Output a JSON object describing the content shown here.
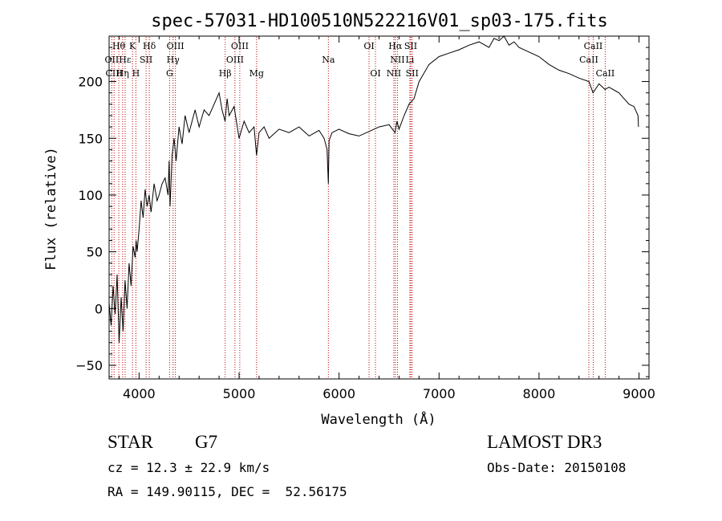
{
  "chart_data": {
    "type": "line",
    "title": "spec-57031-HD100510N522216V01_sp03-175.fits",
    "xlabel": "Wavelength (Å)",
    "ylabel": "Flux (relative)",
    "xlim": [
      3700,
      9100
    ],
    "ylim": [
      -62,
      240
    ],
    "x_ticks": [
      4000,
      5000,
      6000,
      7000,
      8000,
      9000
    ],
    "y_ticks": [
      -50,
      0,
      50,
      100,
      150,
      200
    ],
    "grid": false,
    "series": [
      {
        "color": "#000000",
        "x": [
          3700,
          3720,
          3740,
          3760,
          3780,
          3800,
          3820,
          3840,
          3860,
          3880,
          3900,
          3920,
          3940,
          3960,
          3970,
          3980,
          4000,
          4020,
          4040,
          4060,
          4080,
          4100,
          4120,
          4150,
          4180,
          4200,
          4230,
          4260,
          4290,
          4300,
          4310,
          4330,
          4350,
          4370,
          4400,
          4430,
          4460,
          4500,
          4530,
          4560,
          4600,
          4650,
          4700,
          4750,
          4800,
          4830,
          4860,
          4880,
          4900,
          4950,
          5000,
          5050,
          5100,
          5150,
          5175,
          5200,
          5250,
          5300,
          5400,
          5500,
          5600,
          5700,
          5800,
          5850,
          5880,
          5893,
          5900,
          5930,
          6000,
          6100,
          6200,
          6300,
          6400,
          6500,
          6560,
          6580,
          6600,
          6650,
          6700,
          6750,
          6800,
          6900,
          7000,
          7100,
          7200,
          7300,
          7400,
          7500,
          7550,
          7600,
          7650,
          7700,
          7750,
          7800,
          7900,
          8000,
          8100,
          8200,
          8300,
          8400,
          8500,
          8540,
          8600,
          8660,
          8700,
          8800,
          8850,
          8900,
          8950,
          8990,
          8995
        ],
        "y": [
          5,
          -15,
          20,
          -5,
          30,
          -30,
          10,
          -20,
          25,
          0,
          40,
          20,
          55,
          45,
          60,
          50,
          70,
          95,
          80,
          105,
          90,
          100,
          85,
          110,
          95,
          100,
          110,
          115,
          100,
          130,
          90,
          135,
          150,
          130,
          160,
          145,
          170,
          155,
          165,
          175,
          160,
          175,
          170,
          180,
          190,
          175,
          165,
          185,
          170,
          178,
          150,
          165,
          155,
          160,
          135,
          155,
          160,
          150,
          158,
          155,
          160,
          152,
          157,
          150,
          140,
          110,
          148,
          155,
          158,
          154,
          152,
          156,
          160,
          162,
          155,
          165,
          158,
          170,
          180,
          185,
          200,
          215,
          222,
          225,
          228,
          232,
          235,
          230,
          238,
          236,
          240,
          232,
          235,
          230,
          226,
          222,
          215,
          210,
          207,
          203,
          200,
          190,
          198,
          193,
          195,
          190,
          185,
          180,
          178,
          170,
          160
        ]
      }
    ],
    "line_labels": [
      {
        "name": "Hθ",
        "x": 3797,
        "row": 0
      },
      {
        "name": "OII",
        "x": 3727,
        "row": 1
      },
      {
        "name": "CIII",
        "x": 3750,
        "row": 2
      },
      {
        "name": "K",
        "x": 3934,
        "row": 0
      },
      {
        "name": "Hε",
        "x": 3860,
        "row": 1
      },
      {
        "name": "Hη",
        "x": 3835,
        "row": 2
      },
      {
        "name": "Hδ",
        "x": 4102,
        "row": 0
      },
      {
        "name": "SII",
        "x": 4070,
        "row": 1
      },
      {
        "name": "H",
        "x": 3968,
        "row": 2
      },
      {
        "name": "OIII",
        "x": 4363,
        "row": 0
      },
      {
        "name": "Hγ",
        "x": 4340,
        "row": 1
      },
      {
        "name": "G",
        "x": 4305,
        "row": 2
      },
      {
        "name": "OIII",
        "x": 5007,
        "row": 0
      },
      {
        "name": "OIII",
        "x": 4959,
        "row": 1
      },
      {
        "name": "Hβ",
        "x": 4861,
        "row": 2
      },
      {
        "name": "Mg",
        "x": 5175,
        "row": 2
      },
      {
        "name": "Na",
        "x": 5893,
        "row": 1
      },
      {
        "name": "OI",
        "x": 6300,
        "row": 0
      },
      {
        "name": "OI",
        "x": 6364,
        "row": 2
      },
      {
        "name": "Hα",
        "x": 6563,
        "row": 0
      },
      {
        "name": "NII",
        "x": 6584,
        "row": 1
      },
      {
        "name": "NII",
        "x": 6548,
        "row": 2
      },
      {
        "name": "SII",
        "x": 6717,
        "row": 0
      },
      {
        "name": "Li",
        "x": 6708,
        "row": 1
      },
      {
        "name": "SII",
        "x": 6731,
        "row": 2
      },
      {
        "name": "CaII",
        "x": 8542,
        "row": 0
      },
      {
        "name": "CaII",
        "x": 8498,
        "row": 1
      },
      {
        "name": "CaII",
        "x": 8662,
        "row": 2
      }
    ]
  },
  "info": {
    "class_label": "STAR",
    "subclass_label": "G7",
    "survey_label": "LAMOST DR3",
    "cz_text": "cz = 12.3 ± 22.9 km/s",
    "obs_date_text": "Obs-Date: 20150108",
    "coords_text": "RA = 149.90115, DEC =  52.56175"
  }
}
